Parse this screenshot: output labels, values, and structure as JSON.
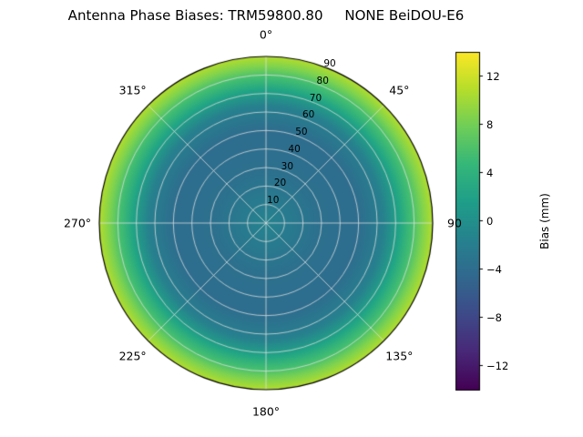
{
  "page": {
    "background": "#ffffff"
  },
  "chart_data": {
    "type": "heatmap",
    "projection": "polar",
    "title": "Antenna Phase Biases: TRM59800.80     NONE BeiDOU-E6",
    "angular_ticks": [
      {
        "deg": 0,
        "label": "0°"
      },
      {
        "deg": 45,
        "label": "45°"
      },
      {
        "deg": 90,
        "label": "90"
      },
      {
        "deg": 135,
        "label": "135°"
      },
      {
        "deg": 180,
        "label": "180°"
      },
      {
        "deg": 225,
        "label": "225°"
      },
      {
        "deg": 270,
        "label": "270°"
      },
      {
        "deg": 315,
        "label": "315°"
      }
    ],
    "radial_ticks": [
      10,
      20,
      30,
      40,
      50,
      60,
      70,
      80,
      90
    ],
    "radial_range": [
      0,
      90
    ],
    "radial_tick_label_azimuth_deg": 22.5,
    "grid": true,
    "grid_color": "rgba(225,225,225,0.85)",
    "colorbar": {
      "label": "Bias (mm)",
      "ticks": [
        12,
        8,
        4,
        0,
        -4,
        -8,
        -12
      ],
      "tick_labels": [
        "12",
        "8",
        "4",
        "0",
        "−4",
        "−8",
        "−12"
      ],
      "range": [
        -14,
        14
      ],
      "colormap": "viridis",
      "stops": [
        "#440154",
        "#482878",
        "#3e4a89",
        "#31688e",
        "#26828e",
        "#1f9e89",
        "#35b779",
        "#6ece58",
        "#b5de2b",
        "#fde725"
      ]
    },
    "radial_bias_profile": {
      "radius_deg": [
        0,
        20,
        40,
        55,
        65,
        75,
        82,
        87,
        90
      ],
      "bias_mm": [
        -1,
        -1.5,
        -2,
        -1.5,
        0,
        2,
        5,
        8,
        10
      ]
    },
    "fill_gradient_stops": [
      {
        "at": 0.0,
        "color": "#25838e"
      },
      {
        "at": 0.3,
        "color": "#2c718e"
      },
      {
        "at": 0.55,
        "color": "#2e6d8e"
      },
      {
        "at": 0.7,
        "color": "#27808e"
      },
      {
        "at": 0.8,
        "color": "#21a585"
      },
      {
        "at": 0.88,
        "color": "#46c06f"
      },
      {
        "at": 0.94,
        "color": "#7fd34e"
      },
      {
        "at": 1.0,
        "color": "#b3dd2c"
      }
    ]
  }
}
